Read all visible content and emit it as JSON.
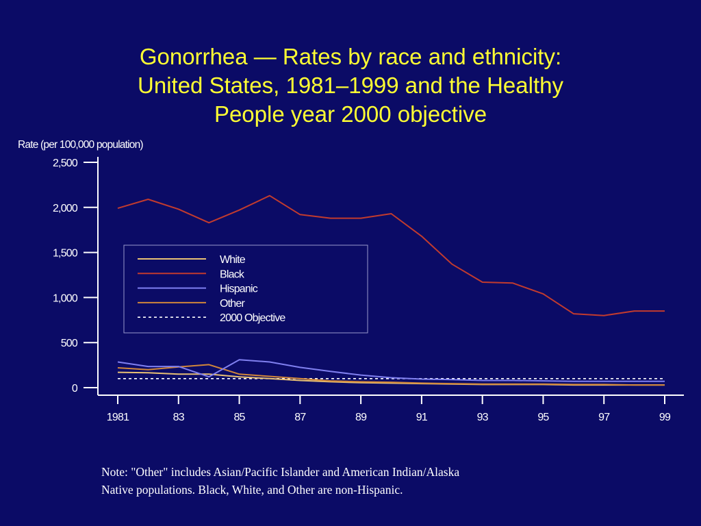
{
  "title": "Gonorrhea  —  Rates by race and ethnicity:\nUnited States, 1981–1999 and the Healthy\nPeople year 2000 objective",
  "note": "Note:  \"Other\" includes Asian/Pacific Islander and American Indian/Alaska\nNative populations. Black, White, and Other are non-Hispanic.",
  "colors": {
    "background": "#0b0b66",
    "title": "#ffff33",
    "axis": "#ffffff",
    "white": "#e8c074",
    "black": "#c23b2e",
    "hispanic": "#8080f0",
    "other": "#d2873a",
    "objective": "#ffffff"
  },
  "chart_data": {
    "type": "line",
    "ylabel": "Rate (per 100,000 population)",
    "xlabel": "",
    "ylim": [
      0,
      2500
    ],
    "xlim": [
      1981,
      1999
    ],
    "yticks": [
      0,
      500,
      1000,
      1500,
      2000,
      2500
    ],
    "ytick_labels": [
      "0",
      "500",
      "1,000",
      "1,500",
      "2,000",
      "2,500"
    ],
    "xticks": [
      1981,
      1983,
      1985,
      1987,
      1989,
      1991,
      1993,
      1995,
      1997,
      1999
    ],
    "xtick_labels": [
      "1981",
      "83",
      "85",
      "87",
      "89",
      "91",
      "93",
      "95",
      "97",
      "99"
    ],
    "grid": false,
    "legend_position": "center-left",
    "x": [
      1981,
      1982,
      1983,
      1984,
      1985,
      1986,
      1987,
      1988,
      1989,
      1990,
      1991,
      1992,
      1993,
      1994,
      1995,
      1996,
      1997,
      1998,
      1999
    ],
    "series": [
      {
        "name": "White",
        "color_key": "white",
        "dashed": false,
        "values": [
          170,
          165,
          150,
          150,
          120,
          100,
          80,
          65,
          55,
          50,
          45,
          40,
          35,
          35,
          35,
          30,
          30,
          30,
          30
        ]
      },
      {
        "name": "Black",
        "color_key": "black",
        "dashed": false,
        "values": [
          1990,
          2090,
          1980,
          1830,
          1970,
          2130,
          1920,
          1880,
          1880,
          1930,
          1680,
          1370,
          1170,
          1160,
          1040,
          820,
          800,
          850,
          850
        ]
      },
      {
        "name": "Hispanic",
        "color_key": "hispanic",
        "dashed": false,
        "values": [
          285,
          235,
          235,
          120,
          310,
          285,
          225,
          180,
          140,
          110,
          95,
          90,
          80,
          80,
          75,
          70,
          70,
          70,
          70
        ]
      },
      {
        "name": "Other",
        "color_key": "other",
        "dashed": false,
        "values": [
          220,
          200,
          230,
          255,
          150,
          125,
          100,
          75,
          65,
          60,
          50,
          45,
          40,
          40,
          40,
          35,
          35,
          30,
          30
        ]
      },
      {
        "name": "2000 Objective",
        "color_key": "objective",
        "dashed": true,
        "values": [
          100,
          100,
          100,
          100,
          100,
          100,
          100,
          100,
          100,
          100,
          100,
          100,
          100,
          100,
          100,
          100,
          100,
          100,
          100
        ]
      }
    ]
  }
}
